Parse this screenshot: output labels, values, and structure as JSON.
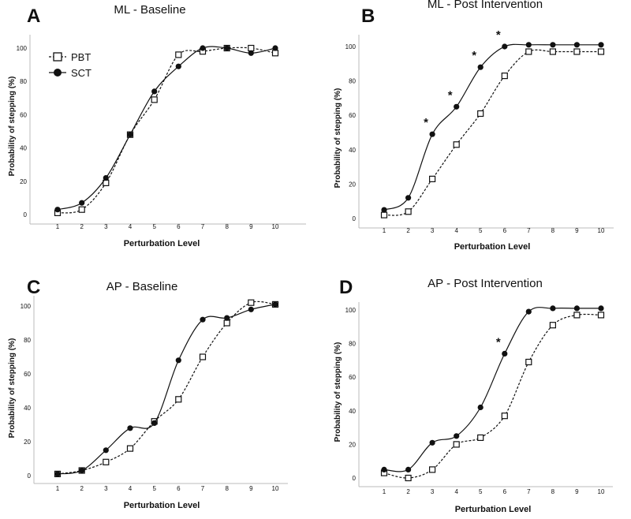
{
  "chart_data": [
    {
      "panel": "A",
      "type": "line",
      "title": "ML - Baseline",
      "xlabel": "Perturbation Level",
      "ylabel": "Probability of stepping (%)",
      "x": [
        1,
        2,
        3,
        4,
        5,
        6,
        7,
        8,
        9,
        10
      ],
      "ylim": [
        0,
        105
      ],
      "yticks": [
        0,
        20,
        40,
        60,
        80,
        100
      ],
      "legend": {
        "position": "top-left",
        "entries": [
          "PBT",
          "SCT"
        ]
      },
      "series": [
        {
          "name": "PBT",
          "values": [
            1,
            3,
            19,
            48,
            69,
            96,
            98,
            100,
            100,
            97
          ]
        },
        {
          "name": "SCT",
          "values": [
            3,
            7,
            22,
            48,
            74,
            89,
            100,
            100,
            97,
            100
          ]
        }
      ],
      "annotations": []
    },
    {
      "panel": "B",
      "type": "line",
      "title": "ML - Post Intervention",
      "xlabel": "Perturbation Level",
      "ylabel": "Probability of stepping (%)",
      "x": [
        1,
        2,
        3,
        4,
        5,
        6,
        7,
        8,
        9,
        10
      ],
      "ylim": [
        0,
        105
      ],
      "yticks": [
        0,
        20,
        40,
        60,
        80,
        100
      ],
      "series": [
        {
          "name": "PBT",
          "values": [
            2,
            4,
            23,
            43,
            61,
            83,
            97,
            97,
            97,
            97
          ]
        },
        {
          "name": "SCT",
          "values": [
            5,
            12,
            49,
            65,
            88,
            100,
            101,
            101,
            101,
            101
          ]
        }
      ],
      "annotations": [
        {
          "text": "*",
          "x": 3
        },
        {
          "text": "*",
          "x": 4
        },
        {
          "text": "*",
          "x": 5
        },
        {
          "text": "*",
          "x": 6
        }
      ]
    },
    {
      "panel": "C",
      "type": "line",
      "title": "AP - Baseline",
      "xlabel": "Perturbation Level",
      "ylabel": "Probability of stepping (%)",
      "x": [
        1,
        2,
        3,
        4,
        5,
        6,
        7,
        8,
        9,
        10
      ],
      "ylim": [
        0,
        105
      ],
      "yticks": [
        0,
        20,
        40,
        60,
        80,
        100
      ],
      "series": [
        {
          "name": "PBT",
          "values": [
            1,
            3,
            8,
            16,
            32,
            45,
            70,
            90,
            102,
            101
          ]
        },
        {
          "name": "SCT",
          "values": [
            1,
            3,
            15,
            28,
            31,
            68,
            92,
            93,
            98,
            101
          ]
        }
      ],
      "annotations": []
    },
    {
      "panel": "D",
      "type": "line",
      "title": "AP - Post Intervention",
      "xlabel": "Perturbation Level",
      "ylabel": "Probability of stepping (%)",
      "x": [
        1,
        2,
        3,
        4,
        5,
        6,
        7,
        8,
        9,
        10
      ],
      "ylim": [
        0,
        105
      ],
      "yticks": [
        0,
        20,
        40,
        60,
        80,
        100
      ],
      "series": [
        {
          "name": "PBT",
          "values": [
            3,
            0,
            5,
            20,
            24,
            37,
            69,
            91,
            97,
            97
          ]
        },
        {
          "name": "SCT",
          "values": [
            5,
            5,
            21,
            25,
            42,
            74,
            99,
            101,
            101,
            101
          ]
        }
      ],
      "annotations": [
        {
          "text": "*",
          "x": 6
        }
      ]
    }
  ]
}
